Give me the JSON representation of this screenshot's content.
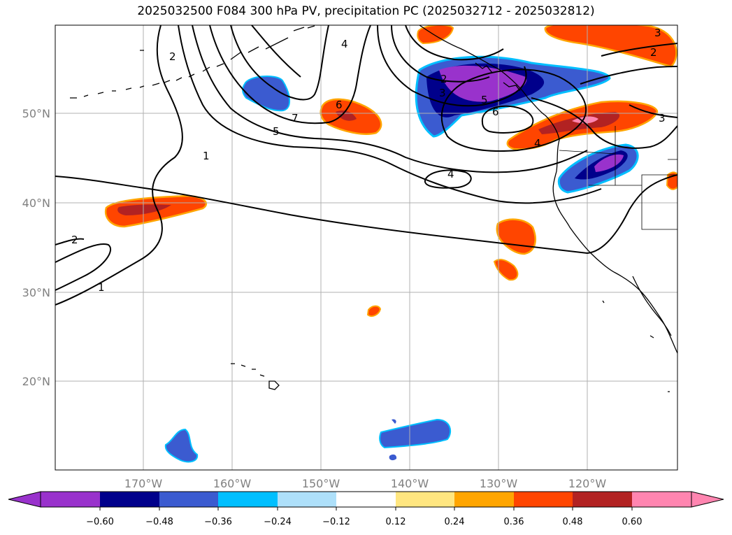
{
  "title": "2025032500 F084 300 hPa PV, precipitation PC (2025032712 - 2025032812)",
  "map": {
    "lat_labels": [
      "50°N",
      "40°N",
      "30°N",
      "20°N"
    ],
    "lon_labels": [
      "170°W",
      "160°W",
      "150°W",
      "140°W",
      "130°W",
      "120°W"
    ],
    "contour_labels": [
      "1",
      "2",
      "3",
      "4",
      "5",
      "6",
      "7"
    ],
    "colors": {
      "coast": "#000000",
      "grid": "#b0b0b0",
      "pv_contour": "#000000"
    }
  },
  "colorbar": {
    "ticks": [
      "−0.60",
      "−0.48",
      "−0.36",
      "−0.24",
      "−0.12",
      "0.12",
      "0.24",
      "0.36",
      "0.48",
      "0.60"
    ],
    "colors": [
      "#9932cc",
      "#00008b",
      "#3b5bd0",
      "#00bfff",
      "#aee0fa",
      "#ffffff",
      "#ffe680",
      "#ffa500",
      "#ff4500",
      "#b22222",
      "#ff85b0",
      "#ff85b0"
    ]
  }
}
